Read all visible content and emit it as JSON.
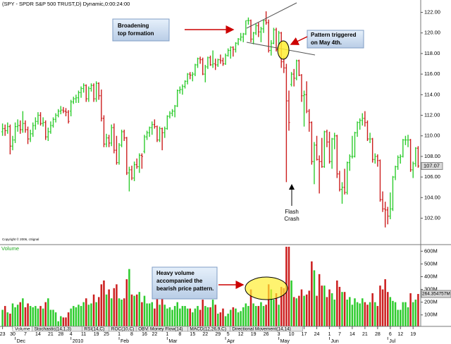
{
  "header": "(SPY - SPDR S&P 500 TRUST,D) Dynamic,0:00:24:00",
  "copyright": "Copyright © 2006, cSignal",
  "tabs": [
    "Volume",
    "Stochastic(14,1,3)",
    "RSI(14,C)",
    "ROC(10,C)",
    "OBV",
    "Money Flow(14)",
    "MACD(12,26,9,C)",
    "Directional Movement(14,14)"
  ],
  "annotations": {
    "broadening": [
      "Broadening",
      "top formation"
    ],
    "triggered": [
      "Pattern triggered",
      "on May 4th."
    ],
    "crash": [
      "Flash",
      "Crash"
    ],
    "heavy": [
      "Heavy volume",
      "accompanied the",
      "bearish price pattern."
    ]
  },
  "chart_data": {
    "type": "ohlc",
    "up_color": "#2ecc2e",
    "down_color": "#cc1f1f",
    "ylim": [
      99.5,
      123.2
    ],
    "yticks": [
      {
        "value": 102,
        "label": "102.00"
      },
      {
        "value": 104,
        "label": "104.00"
      },
      {
        "value": 106,
        "label": "106.00"
      },
      {
        "value": 108,
        "label": "108.00"
      },
      {
        "value": 110,
        "label": "110.00"
      },
      {
        "value": 112,
        "label": "112.00"
      },
      {
        "value": 114,
        "label": "114.00"
      },
      {
        "value": 116,
        "label": "116.00"
      },
      {
        "value": 118,
        "label": "118.00"
      },
      {
        "value": 120,
        "label": "120.00"
      },
      {
        "value": 122,
        "label": "122.00"
      }
    ],
    "xlim": [
      -1,
      165
    ],
    "xticks": [
      {
        "value": 0,
        "label": "23"
      },
      {
        "value": 4,
        "label": "30"
      },
      {
        "value": 9,
        "label": "7"
      },
      {
        "value": 14,
        "label": "14"
      },
      {
        "value": 19,
        "label": "21"
      },
      {
        "value": 23,
        "label": "28"
      },
      {
        "value": 27,
        "label": "4"
      },
      {
        "value": 32,
        "label": "11"
      },
      {
        "value": 37,
        "label": "19"
      },
      {
        "value": 41,
        "label": "25"
      },
      {
        "value": 46,
        "label": "1"
      },
      {
        "value": 51,
        "label": "8"
      },
      {
        "value": 56,
        "label": "16"
      },
      {
        "value": 60,
        "label": "22"
      },
      {
        "value": 65,
        "label": "1"
      },
      {
        "value": 70,
        "label": "8"
      },
      {
        "value": 75,
        "label": "15"
      },
      {
        "value": 80,
        "label": "22"
      },
      {
        "value": 85,
        "label": "29"
      },
      {
        "value": 89,
        "label": "5"
      },
      {
        "value": 94,
        "label": "12"
      },
      {
        "value": 99,
        "label": "19"
      },
      {
        "value": 104,
        "label": "26"
      },
      {
        "value": 109,
        "label": "3"
      },
      {
        "value": 114,
        "label": "10"
      },
      {
        "value": 119,
        "label": "17"
      },
      {
        "value": 124,
        "label": "24"
      },
      {
        "value": 129,
        "label": "1"
      },
      {
        "value": 133,
        "label": "7"
      },
      {
        "value": 138,
        "label": "14"
      },
      {
        "value": 143,
        "label": "21"
      },
      {
        "value": 148,
        "label": "28"
      },
      {
        "value": 153,
        "label": "6"
      },
      {
        "value": 157,
        "label": "12"
      },
      {
        "value": 162,
        "label": "19"
      }
    ],
    "months": [
      {
        "value": 5,
        "label": "Dec"
      },
      {
        "value": 27,
        "label": "2010"
      },
      {
        "value": 46,
        "label": "Feb"
      },
      {
        "value": 65,
        "label": "Mar"
      },
      {
        "value": 88,
        "label": "Apr"
      },
      {
        "value": 109,
        "label": "May"
      },
      {
        "value": 129,
        "label": "Jun"
      },
      {
        "value": 152,
        "label": "Jul"
      }
    ],
    "ohlc": [
      [
        110.4,
        111.2,
        110.0,
        110.7
      ],
      [
        110.7,
        111.1,
        110.0,
        110.5
      ],
      [
        110.5,
        111.3,
        110.2,
        110.9
      ],
      [
        110.9,
        111.1,
        108.2,
        109.0
      ],
      [
        109.0,
        110.0,
        108.6,
        109.6
      ],
      [
        109.6,
        111.3,
        109.3,
        110.9
      ],
      [
        110.9,
        111.6,
        110.4,
        111.0
      ],
      [
        111.0,
        111.5,
        110.2,
        110.6
      ],
      [
        110.6,
        112.4,
        110.3,
        111.2
      ],
      [
        111.2,
        111.5,
        110.3,
        110.6
      ],
      [
        110.6,
        110.9,
        109.2,
        109.7
      ],
      [
        109.7,
        110.6,
        109.4,
        110.2
      ],
      [
        110.2,
        111.3,
        109.9,
        111.0
      ],
      [
        111.0,
        111.8,
        110.6,
        111.4
      ],
      [
        111.4,
        112.3,
        111.1,
        112.0
      ],
      [
        112.0,
        112.3,
        111.0,
        111.2
      ],
      [
        111.2,
        111.8,
        110.9,
        111.3
      ],
      [
        111.3,
        111.5,
        109.6,
        109.9
      ],
      [
        109.9,
        110.8,
        109.5,
        110.4
      ],
      [
        110.4,
        111.4,
        110.2,
        111.0
      ],
      [
        111.0,
        111.8,
        110.8,
        111.6
      ],
      [
        111.6,
        112.2,
        111.3,
        112.0
      ],
      [
        112.0,
        112.6,
        111.8,
        112.4
      ],
      [
        112.4,
        112.9,
        112.1,
        112.5
      ],
      [
        112.5,
        112.8,
        112.2,
        112.4
      ],
      [
        112.4,
        112.7,
        111.9,
        112.3
      ],
      [
        112.3,
        112.5,
        111.2,
        111.4
      ],
      [
        112.4,
        113.5,
        111.9,
        113.3
      ],
      [
        113.3,
        113.8,
        113.1,
        113.6
      ],
      [
        113.6,
        114.0,
        113.2,
        113.7
      ],
      [
        113.7,
        114.4,
        113.2,
        114.2
      ],
      [
        114.2,
        114.8,
        113.7,
        114.6
      ],
      [
        114.6,
        115.1,
        114.2,
        114.9
      ],
      [
        114.9,
        115.0,
        113.3,
        113.6
      ],
      [
        113.6,
        114.8,
        113.3,
        114.6
      ],
      [
        114.6,
        115.1,
        114.3,
        114.9
      ],
      [
        114.9,
        115.1,
        113.3,
        113.6
      ],
      [
        113.6,
        115.3,
        113.3,
        115.1
      ],
      [
        115.1,
        115.2,
        113.5,
        113.9
      ],
      [
        113.9,
        114.5,
        111.4,
        111.7
      ],
      [
        111.7,
        112.0,
        108.9,
        109.2
      ],
      [
        109.2,
        110.2,
        108.9,
        109.8
      ],
      [
        109.8,
        110.1,
        108.9,
        109.3
      ],
      [
        109.3,
        111.1,
        109.0,
        110.8
      ],
      [
        110.8,
        111.2,
        108.3,
        108.6
      ],
      [
        108.6,
        110.0,
        107.2,
        107.4
      ],
      [
        107.4,
        109.3,
        107.2,
        109.1
      ],
      [
        109.1,
        110.6,
        108.9,
        110.4
      ],
      [
        110.4,
        110.6,
        109.5,
        109.8
      ],
      [
        109.8,
        109.9,
        106.2,
        106.4
      ],
      [
        106.4,
        107.0,
        104.6,
        106.7
      ],
      [
        106.7,
        107.1,
        105.7,
        105.9
      ],
      [
        105.9,
        107.5,
        105.6,
        107.2
      ],
      [
        107.2,
        107.8,
        106.8,
        107.0
      ],
      [
        107.0,
        108.3,
        106.4,
        108.1
      ],
      [
        108.1,
        108.3,
        106.8,
        108.0
      ],
      [
        108.5,
        110.1,
        108.3,
        109.9
      ],
      [
        109.9,
        110.5,
        109.6,
        110.3
      ],
      [
        110.3,
        110.9,
        109.9,
        110.8
      ],
      [
        110.8,
        111.4,
        110.1,
        111.1
      ],
      [
        111.1,
        111.6,
        110.7,
        110.9
      ],
      [
        110.9,
        111.0,
        109.4,
        109.6
      ],
      [
        109.6,
        110.9,
        109.4,
        110.7
      ],
      [
        110.7,
        110.8,
        108.6,
        110.3
      ],
      [
        110.3,
        110.9,
        109.8,
        110.7
      ],
      [
        110.7,
        112.0,
        110.6,
        111.9
      ],
      [
        111.9,
        112.4,
        111.7,
        112.2
      ],
      [
        112.2,
        112.6,
        111.9,
        112.4
      ],
      [
        112.4,
        113.0,
        111.8,
        112.9
      ],
      [
        112.9,
        114.5,
        112.8,
        114.4
      ],
      [
        114.4,
        114.8,
        114.1,
        114.5
      ],
      [
        114.5,
        115.0,
        114.0,
        114.8
      ],
      [
        114.8,
        115.4,
        114.6,
        115.3
      ],
      [
        115.3,
        116.1,
        115.0,
        116.0
      ],
      [
        116.0,
        116.2,
        115.5,
        115.9
      ],
      [
        115.9,
        116.2,
        115.3,
        116.0
      ],
      [
        116.0,
        117.0,
        115.8,
        116.9
      ],
      [
        116.9,
        117.6,
        116.6,
        117.5
      ],
      [
        117.5,
        117.7,
        117.0,
        117.4
      ],
      [
        117.4,
        117.6,
        115.9,
        116.0
      ],
      [
        116.0,
        116.9,
        115.2,
        116.7
      ],
      [
        116.7,
        117.7,
        116.5,
        117.6
      ],
      [
        117.6,
        117.8,
        116.8,
        116.9
      ],
      [
        116.9,
        118.3,
        116.6,
        117.0
      ],
      [
        117.0,
        117.5,
        116.4,
        116.9
      ],
      [
        116.9,
        117.5,
        116.7,
        117.4
      ],
      [
        117.4,
        117.9,
        117.0,
        117.3
      ],
      [
        117.3,
        117.6,
        116.8,
        117.0
      ],
      [
        117.0,
        118.0,
        116.9,
        117.8
      ],
      [
        117.8,
        118.5,
        117.7,
        118.3
      ],
      [
        118.3,
        118.7,
        117.5,
        118.6
      ],
      [
        118.6,
        118.7,
        117.7,
        118.4
      ],
      [
        118.4,
        119.1,
        118.1,
        119.0
      ],
      [
        119.0,
        119.5,
        118.8,
        119.4
      ],
      [
        119.4,
        120.0,
        119.2,
        119.6
      ],
      [
        119.6,
        120.0,
        119.1,
        119.9
      ],
      [
        119.9,
        121.2,
        119.8,
        121.2
      ],
      [
        121.2,
        121.5,
        120.8,
        121.2
      ],
      [
        121.2,
        121.3,
        119.1,
        119.4
      ],
      [
        119.4,
        120.1,
        118.9,
        120.0
      ],
      [
        120.0,
        120.9,
        119.8,
        120.7
      ],
      [
        120.7,
        121.0,
        119.6,
        120.1
      ],
      [
        120.1,
        120.6,
        119.1,
        120.4
      ],
      [
        120.4,
        121.3,
        120.0,
        121.2
      ],
      [
        121.2,
        122.1,
        120.8,
        121.0
      ],
      [
        121.0,
        121.3,
        118.1,
        118.3
      ],
      [
        118.3,
        119.3,
        117.8,
        119.0
      ],
      [
        119.0,
        120.5,
        118.9,
        120.3
      ],
      [
        120.3,
        120.5,
        118.2,
        118.4
      ],
      [
        118.4,
        120.2,
        118.2,
        120.0
      ],
      [
        120.0,
        120.1,
        116.6,
        117.2
      ],
      [
        117.2,
        117.7,
        116.1,
        116.6
      ],
      [
        116.6,
        117.0,
        105.5,
        113.4
      ],
      [
        113.4,
        114.4,
        110.5,
        111.3
      ],
      [
        115.0,
        116.2,
        114.8,
        116.0
      ],
      [
        116.0,
        116.5,
        114.8,
        115.6
      ],
      [
        115.6,
        117.4,
        115.4,
        117.3
      ],
      [
        117.3,
        117.4,
        115.8,
        115.9
      ],
      [
        115.9,
        116.0,
        113.3,
        113.9
      ],
      [
        113.9,
        114.4,
        110.9,
        114.0
      ],
      [
        114.0,
        115.3,
        112.2,
        112.4
      ],
      [
        112.4,
        112.6,
        110.4,
        111.3
      ],
      [
        111.3,
        111.4,
        107.2,
        107.5
      ],
      [
        107.5,
        109.4,
        105.3,
        109.1
      ],
      [
        109.1,
        110.0,
        107.6,
        107.7
      ],
      [
        107.7,
        108.1,
        104.4,
        107.5
      ],
      [
        107.5,
        109.8,
        106.9,
        107.0
      ],
      [
        107.0,
        110.5,
        106.9,
        110.4
      ],
      [
        110.4,
        110.6,
        108.9,
        109.4
      ],
      [
        109.4,
        110.4,
        107.3,
        107.5
      ],
      [
        107.5,
        109.8,
        106.8,
        109.7
      ],
      [
        109.7,
        110.3,
        108.7,
        110.0
      ],
      [
        110.0,
        110.1,
        105.9,
        106.3
      ],
      [
        106.3,
        106.6,
        104.6,
        104.8
      ],
      [
        104.8,
        105.5,
        103.4,
        105.0
      ],
      [
        105.0,
        106.8,
        104.3,
        104.5
      ],
      [
        104.5,
        107.5,
        104.3,
        107.4
      ],
      [
        107.4,
        108.2,
        106.6,
        108.0
      ],
      [
        108.0,
        110.0,
        107.8,
        108.0
      ],
      [
        108.0,
        110.4,
        107.9,
        110.3
      ],
      [
        110.3,
        111.4,
        109.9,
        111.3
      ],
      [
        111.3,
        111.7,
        110.6,
        111.5
      ],
      [
        111.5,
        112.2,
        111.0,
        111.7
      ],
      [
        111.7,
        112.4,
        110.9,
        111.3
      ],
      [
        111.3,
        111.5,
        109.5,
        109.7
      ],
      [
        109.7,
        110.3,
        109.3,
        109.7
      ],
      [
        109.7,
        109.8,
        107.4,
        107.7
      ],
      [
        107.7,
        108.3,
        107.3,
        108.0
      ],
      [
        108.0,
        108.2,
        107.0,
        107.6
      ],
      [
        107.6,
        107.7,
        103.6,
        103.8
      ],
      [
        103.8,
        104.6,
        102.6,
        102.9
      ],
      [
        102.9,
        103.6,
        101.1,
        102.8
      ],
      [
        102.8,
        103.1,
        101.4,
        102.2
      ],
      [
        102.2,
        104.5,
        101.9,
        102.9
      ],
      [
        102.9,
        106.1,
        102.7,
        106.0
      ],
      [
        106.0,
        107.1,
        105.7,
        107.0
      ],
      [
        107.0,
        108.1,
        106.7,
        107.9
      ],
      [
        107.9,
        108.2,
        107.3,
        108.0
      ],
      [
        108.0,
        109.7,
        107.9,
        109.6
      ],
      [
        109.6,
        110.0,
        109.1,
        109.6
      ],
      [
        109.6,
        110.1,
        108.9,
        109.6
      ],
      [
        109.6,
        109.7,
        106.5,
        106.7
      ],
      [
        106.7,
        107.5,
        105.9,
        107.3
      ],
      [
        107.3,
        108.9,
        107.0,
        108.8
      ],
      [
        108.8,
        109.0,
        106.9,
        107.07
      ]
    ],
    "volume": {
      "name": "Volume",
      "color": "#22cc22",
      "ylim": [
        10,
        635
      ],
      "yticks": [
        {
          "value": 100,
          "label": "100M"
        },
        {
          "value": 200,
          "label": "200M"
        },
        {
          "value": 300,
          "label": "300M"
        },
        {
          "value": 400,
          "label": "400M"
        },
        {
          "value": 500,
          "label": "500M"
        },
        {
          "value": 600,
          "label": "600M"
        }
      ],
      "values": [
        140,
        170,
        120,
        110,
        190,
        160,
        180,
        200,
        230,
        160,
        190,
        170,
        160,
        170,
        150,
        170,
        150,
        200,
        230,
        140,
        140,
        120,
        50,
        90,
        80,
        80,
        120,
        150,
        170,
        160,
        180,
        170,
        200,
        230,
        180,
        190,
        260,
        200,
        240,
        340,
        370,
        260,
        300,
        230,
        310,
        340,
        230,
        220,
        230,
        380,
        460,
        260,
        250,
        260,
        280,
        200,
        250,
        190,
        190,
        200,
        150,
        230,
        180,
        250,
        180,
        150,
        160,
        140,
        170,
        200,
        150,
        170,
        170,
        150,
        150,
        120,
        150,
        170,
        140,
        220,
        170,
        160,
        160,
        220,
        180,
        110,
        120,
        150,
        90,
        110,
        140,
        160,
        150,
        120,
        130,
        160,
        190,
        170,
        300,
        190,
        170,
        170,
        200,
        170,
        180,
        340,
        300,
        220,
        270,
        180,
        320,
        310,
        650,
        660,
        370,
        240,
        230,
        250,
        300,
        250,
        260,
        290,
        520,
        450,
        250,
        420,
        330,
        330,
        240,
        300,
        270,
        220,
        370,
        320,
        280,
        280,
        220,
        240,
        180,
        230,
        200,
        190,
        230,
        200,
        180,
        200,
        270,
        200,
        170,
        330,
        300,
        380,
        280,
        240,
        210,
        200,
        140,
        140,
        200,
        200,
        160,
        270,
        200,
        220,
        264.354757
      ],
      "last_label": "264.354757M"
    }
  }
}
